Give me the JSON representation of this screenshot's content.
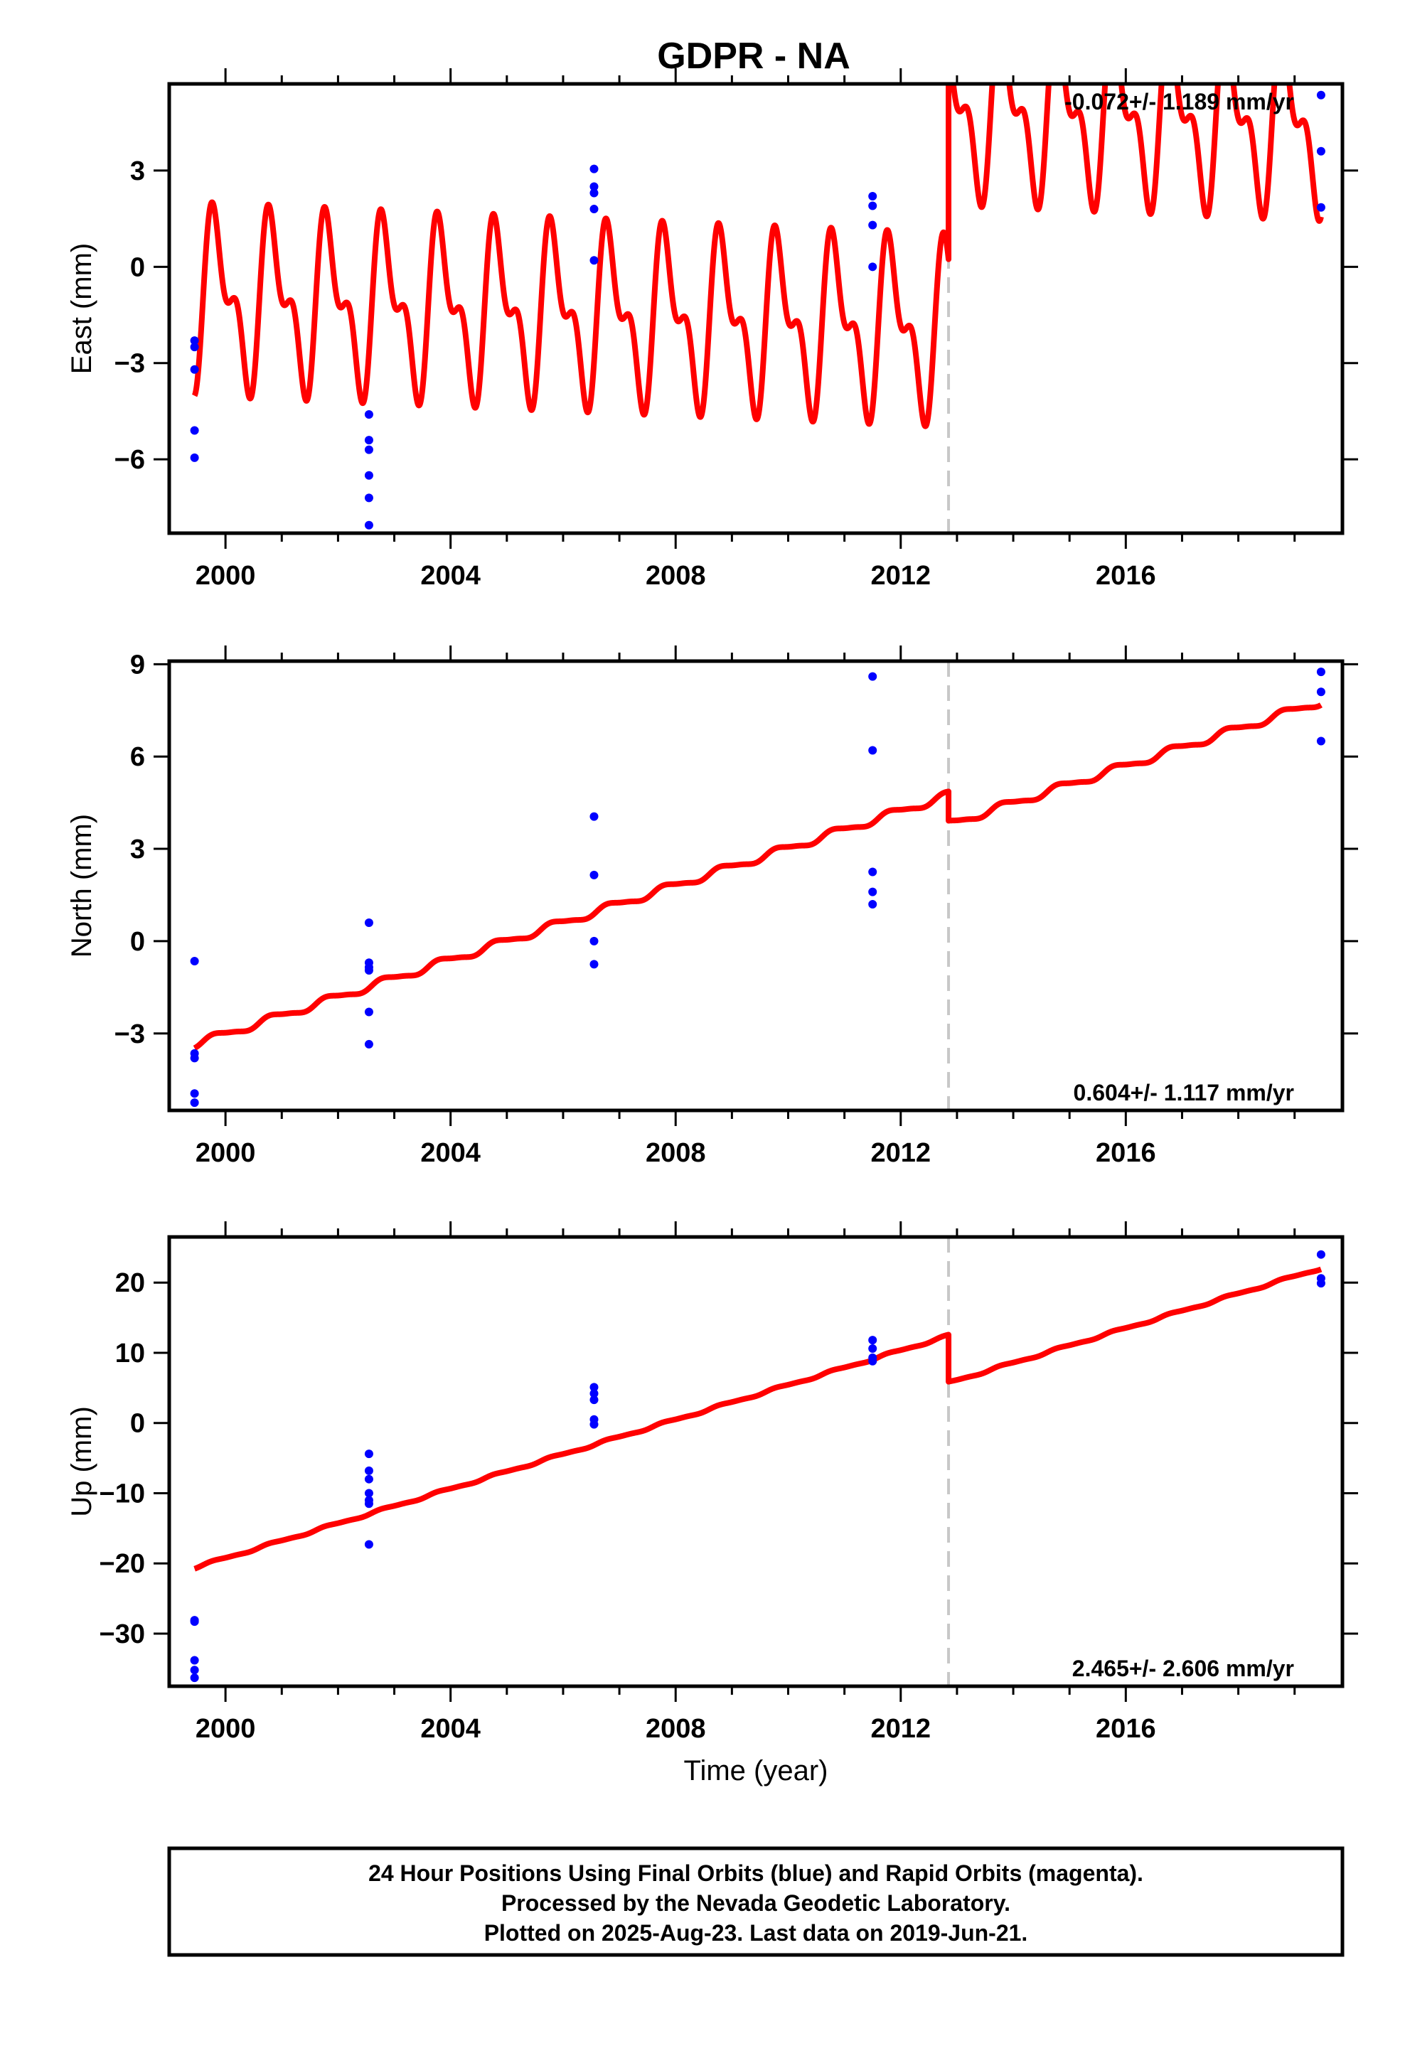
{
  "title": "GDPR - NA",
  "chart_data": [
    {
      "type": "scatter",
      "panel": "east",
      "ylabel": "East (mm)",
      "xlim": [
        1999.0,
        2019.85
      ],
      "ylim": [
        -8.3,
        5.7
      ],
      "yticks": [
        3,
        0,
        -3,
        -6
      ],
      "yticklabels": [
        "3",
        "0",
        "−3",
        "−6"
      ],
      "xticks": [
        2000,
        2004,
        2008,
        2012,
        2016
      ],
      "xticklabels": [
        "2000",
        "2004",
        "2008",
        "2012",
        "2016"
      ],
      "rate_text": "-0.072+/- 1.189 mm/yr",
      "rate_position": "top-right",
      "offset_year": 2012.85,
      "points": [
        {
          "x": 1999.45,
          "y": -2.3
        },
        {
          "x": 1999.45,
          "y": -2.5
        },
        {
          "x": 1999.45,
          "y": -3.2
        },
        {
          "x": 1999.45,
          "y": -5.1
        },
        {
          "x": 1999.45,
          "y": -5.95
        },
        {
          "x": 2002.55,
          "y": -4.6
        },
        {
          "x": 2002.55,
          "y": -5.4
        },
        {
          "x": 2002.55,
          "y": -5.7
        },
        {
          "x": 2002.55,
          "y": -6.5
        },
        {
          "x": 2002.55,
          "y": -7.2
        },
        {
          "x": 2002.55,
          "y": -8.05
        },
        {
          "x": 2006.55,
          "y": 3.05
        },
        {
          "x": 2006.55,
          "y": 2.5
        },
        {
          "x": 2006.55,
          "y": 2.3
        },
        {
          "x": 2006.55,
          "y": 1.8
        },
        {
          "x": 2006.55,
          "y": 0.2
        },
        {
          "x": 2011.5,
          "y": 2.2
        },
        {
          "x": 2011.5,
          "y": 1.9
        },
        {
          "x": 2011.5,
          "y": 1.3
        },
        {
          "x": 2011.5,
          "y": 0.0
        },
        {
          "x": 2019.47,
          "y": 5.35
        },
        {
          "x": 2019.47,
          "y": 3.6
        },
        {
          "x": 2019.47,
          "y": 1.85
        }
      ],
      "model": {
        "start": 1999.45,
        "end": 2019.47,
        "intercept_at_start": -1.0,
        "rate": -0.072,
        "offset": 6.9,
        "annual_amp": 2.2,
        "semiannual_amp": 1.3
      }
    },
    {
      "type": "scatter",
      "panel": "north",
      "ylabel": "North (mm)",
      "xlim": [
        1999.0,
        2019.85
      ],
      "ylim": [
        -5.5,
        9.1
      ],
      "yticks": [
        9,
        6,
        3,
        0,
        -3
      ],
      "yticklabels": [
        "9",
        "6",
        "3",
        "0",
        "−3"
      ],
      "xticks": [
        2000,
        2004,
        2008,
        2012,
        2016
      ],
      "xticklabels": [
        "2000",
        "2004",
        "2008",
        "2012",
        "2016"
      ],
      "rate_text": "0.604+/- 1.117 mm/yr",
      "rate_position": "bottom-right",
      "offset_year": 2012.85,
      "points": [
        {
          "x": 1999.45,
          "y": -0.65
        },
        {
          "x": 1999.45,
          "y": -3.65
        },
        {
          "x": 1999.45,
          "y": -3.8
        },
        {
          "x": 1999.45,
          "y": -4.95
        },
        {
          "x": 1999.45,
          "y": -5.25
        },
        {
          "x": 2002.55,
          "y": 0.6
        },
        {
          "x": 2002.55,
          "y": -0.7
        },
        {
          "x": 2002.55,
          "y": -0.85
        },
        {
          "x": 2002.55,
          "y": -0.95
        },
        {
          "x": 2002.55,
          "y": -2.3
        },
        {
          "x": 2002.55,
          "y": -3.35
        },
        {
          "x": 2006.55,
          "y": 4.05
        },
        {
          "x": 2006.55,
          "y": 2.15
        },
        {
          "x": 2006.55,
          "y": 0.0
        },
        {
          "x": 2006.55,
          "y": -0.75
        },
        {
          "x": 2011.5,
          "y": 8.6
        },
        {
          "x": 2011.5,
          "y": 6.2
        },
        {
          "x": 2011.5,
          "y": 2.25
        },
        {
          "x": 2011.5,
          "y": 1.6
        },
        {
          "x": 2011.5,
          "y": 1.2
        },
        {
          "x": 2019.47,
          "y": 8.75
        },
        {
          "x": 2019.47,
          "y": 8.1
        },
        {
          "x": 2019.47,
          "y": 6.5
        }
      ],
      "model": {
        "start": 1999.45,
        "end": 2019.47,
        "intercept_at_start": -3.35,
        "rate": 0.604,
        "offset": -0.95,
        "annual_amp": 0.12,
        "semiannual_amp": 0.03
      }
    },
    {
      "type": "scatter",
      "panel": "up",
      "ylabel": "Up (mm)",
      "xlabel": "Time (year)",
      "xlim": [
        1999.0,
        2019.85
      ],
      "ylim": [
        -37.5,
        26.5
      ],
      "yticks": [
        20,
        10,
        0,
        -10,
        -20,
        -30
      ],
      "yticklabels": [
        "20",
        "10",
        "0",
        "−10",
        "−20",
        "−30"
      ],
      "xticks": [
        2000,
        2004,
        2008,
        2012,
        2016
      ],
      "xticklabels": [
        "2000",
        "2004",
        "2008",
        "2012",
        "2016"
      ],
      "rate_text": "2.465+/- 2.606 mm/yr",
      "rate_position": "bottom-right",
      "offset_year": 2012.85,
      "points": [
        {
          "x": 1999.45,
          "y": -28.1
        },
        {
          "x": 1999.45,
          "y": -28.3
        },
        {
          "x": 1999.45,
          "y": -33.8
        },
        {
          "x": 1999.45,
          "y": -35.2
        },
        {
          "x": 1999.45,
          "y": -36.3
        },
        {
          "x": 2002.55,
          "y": -4.4
        },
        {
          "x": 2002.55,
          "y": -6.8
        },
        {
          "x": 2002.55,
          "y": -8.0
        },
        {
          "x": 2002.55,
          "y": -10.0
        },
        {
          "x": 2002.55,
          "y": -11.0
        },
        {
          "x": 2002.55,
          "y": -11.5
        },
        {
          "x": 2002.55,
          "y": -17.3
        },
        {
          "x": 2006.55,
          "y": 5.1
        },
        {
          "x": 2006.55,
          "y": 4.2
        },
        {
          "x": 2006.55,
          "y": 3.3
        },
        {
          "x": 2006.55,
          "y": 0.5
        },
        {
          "x": 2006.55,
          "y": -0.2
        },
        {
          "x": 2011.5,
          "y": 11.8
        },
        {
          "x": 2011.5,
          "y": 10.6
        },
        {
          "x": 2011.5,
          "y": 9.3
        },
        {
          "x": 2011.5,
          "y": 8.8
        },
        {
          "x": 2019.47,
          "y": 24.0
        },
        {
          "x": 2019.47,
          "y": 20.6
        },
        {
          "x": 2019.47,
          "y": 19.9
        }
      ],
      "model": {
        "start": 1999.45,
        "end": 2019.47,
        "intercept_at_start": -20.6,
        "rate": 2.465,
        "offset": -6.7,
        "annual_amp": 0.15,
        "semiannual_amp": 0.05
      }
    }
  ],
  "colors": {
    "points": "#0000ff",
    "model": "#ff0000",
    "offset_line": "#c8c8c8"
  },
  "footer": {
    "line1": "24 Hour Positions Using Final Orbits (blue) and Rapid Orbits (magenta).",
    "line2": "Processed by the Nevada Geodetic Laboratory.",
    "line3": "Plotted on 2025-Aug-23. Last data on 2019-Jun-21."
  }
}
